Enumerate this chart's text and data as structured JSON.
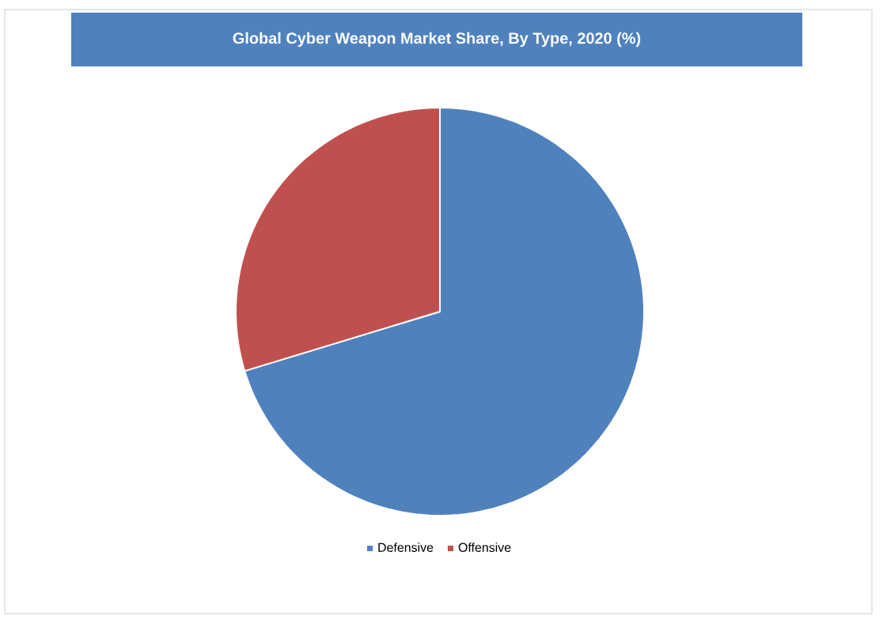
{
  "chart_data": {
    "type": "pie",
    "title": "Global Cyber Weapon Market Share, By Type, 2020 (%)",
    "categories": [
      "Defensive",
      "Offensive"
    ],
    "values": [
      70.3,
      29.7
    ],
    "colors": [
      "#4f81bd",
      "#c0504d"
    ],
    "legend": "bottom"
  }
}
